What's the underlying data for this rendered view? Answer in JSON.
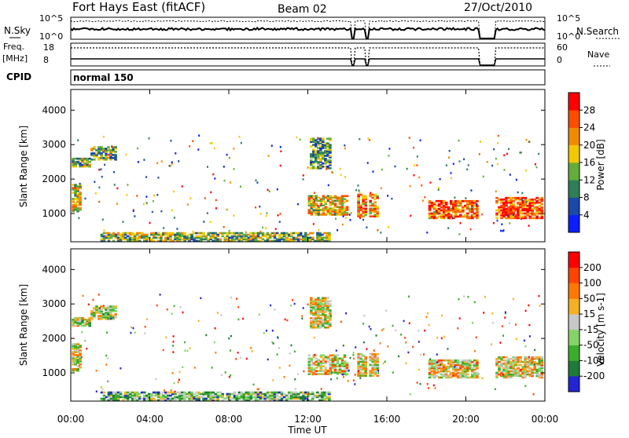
{
  "header": {
    "station": "Fort Hays East (fitACF)",
    "beam": "Beam 02",
    "date": "27/Oct/2010"
  },
  "noise_panel": {
    "left_label": "N.Sky",
    "right_label": "N.Search",
    "ticks_left": [
      "10^5",
      "10^0"
    ],
    "ticks_right": [
      "10^5",
      "10^0"
    ]
  },
  "freq_panel": {
    "left_label": "Freq.",
    "unit_label": "[MHz]",
    "right_label": "Nave",
    "ticks_left": [
      "18",
      "8"
    ],
    "ticks_right": [
      "60",
      "0"
    ]
  },
  "cpid_panel": {
    "label": "CPID",
    "value": "normal 150"
  },
  "x_axis": {
    "label": "Time UT",
    "ticks": [
      "00:00",
      "04:00",
      "08:00",
      "12:00",
      "16:00",
      "20:00",
      "00:00"
    ]
  },
  "chart_data": [
    {
      "type": "heatmap",
      "name": "power",
      "ylabel": "Slant Range [km]",
      "yticks": [
        1000,
        2000,
        3000,
        4000
      ],
      "ylim": [
        180,
        4600
      ],
      "xlim_hours": [
        0,
        24
      ],
      "colorbar": {
        "label": "Power [dB]",
        "ticks": [
          4,
          8,
          12,
          16,
          20,
          24,
          28
        ],
        "colors": [
          "#0a1eff",
          "#1c48a8",
          "#2f7f56",
          "#63ad3b",
          "#f2c800",
          "#f28a00",
          "#ff4d00",
          "#ff0000"
        ]
      },
      "regions": [
        {
          "t": [
            0.05,
            0.5
          ],
          "r": [
            1050,
            1850
          ],
          "level": 0.55
        },
        {
          "t": [
            0.05,
            1.0
          ],
          "r": [
            2350,
            2600
          ],
          "level": 0.45
        },
        {
          "t": [
            1.0,
            2.3
          ],
          "r": [
            2550,
            2950
          ],
          "level": 0.4
        },
        {
          "t": [
            1.5,
            13.1
          ],
          "r": [
            190,
            420
          ],
          "level": 0.45
        },
        {
          "t": [
            12.1,
            13.1
          ],
          "r": [
            2300,
            3200
          ],
          "level": 0.35
        },
        {
          "t": [
            12.0,
            14.0
          ],
          "r": [
            950,
            1500
          ],
          "level": 0.6
        },
        {
          "t": [
            14.5,
            14.9
          ],
          "r": [
            900,
            1550
          ],
          "level": 0.7
        },
        {
          "t": [
            15.1,
            15.5
          ],
          "r": [
            900,
            1550
          ],
          "level": 0.65
        },
        {
          "t": [
            18.1,
            20.6
          ],
          "r": [
            850,
            1350
          ],
          "level": 0.75
        },
        {
          "t": [
            21.5,
            23.9
          ],
          "r": [
            850,
            1450
          ],
          "level": 0.8
        }
      ]
    },
    {
      "type": "heatmap",
      "name": "velocity",
      "ylabel": "Slant Range [km]",
      "yticks": [
        1000,
        2000,
        3000,
        4000
      ],
      "ylim": [
        180,
        4600
      ],
      "xlim_hours": [
        0,
        24
      ],
      "colorbar": {
        "label": "Velocity [m s-1]",
        "ticks": [
          200,
          100,
          50,
          15,
          -15,
          -50,
          -100,
          -200
        ],
        "colors": [
          "#2323d8",
          "#1f7a3a",
          "#3aae2a",
          "#85d46a",
          "#c8c8c8",
          "#f3b224",
          "#ff7800",
          "#ff4400",
          "#ff0000"
        ]
      },
      "regions": [
        {
          "t": [
            0.05,
            0.5
          ],
          "r": [
            1050,
            1850
          ],
          "level": 0.5
        },
        {
          "t": [
            0.05,
            1.0
          ],
          "r": [
            2350,
            2600
          ],
          "level": 0.45
        },
        {
          "t": [
            1.0,
            2.3
          ],
          "r": [
            2550,
            2950
          ],
          "level": 0.45
        },
        {
          "t": [
            1.5,
            13.1
          ],
          "r": [
            190,
            420
          ],
          "level": 0.35
        },
        {
          "t": [
            12.1,
            13.1
          ],
          "r": [
            2300,
            3200
          ],
          "level": 0.5
        },
        {
          "t": [
            12.0,
            14.0
          ],
          "r": [
            950,
            1500
          ],
          "level": 0.55
        },
        {
          "t": [
            14.5,
            14.9
          ],
          "r": [
            900,
            1550
          ],
          "level": 0.5
        },
        {
          "t": [
            15.1,
            15.5
          ],
          "r": [
            900,
            1550
          ],
          "level": 0.5
        },
        {
          "t": [
            18.1,
            20.6
          ],
          "r": [
            850,
            1350
          ],
          "level": 0.55
        },
        {
          "t": [
            21.5,
            23.9
          ],
          "r": [
            850,
            1450
          ],
          "level": 0.55
        }
      ]
    }
  ]
}
